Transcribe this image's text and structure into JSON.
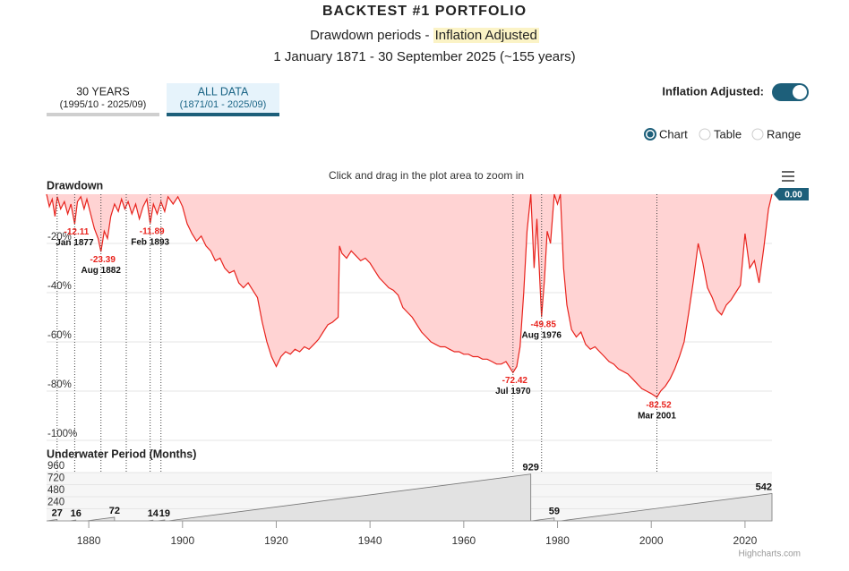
{
  "header": {
    "title": "BACKTEST #1 PORTFOLIO",
    "subtitle": "Drawdown periods - ",
    "subtitle_highlight": "Inflation Adjusted",
    "period": "1 January 1871 - 30 September 2025 (~155 years)"
  },
  "tabs": [
    {
      "label": "30 YEARS",
      "range": "(1995/10 - 2025/09)",
      "active": false
    },
    {
      "label": "ALL DATA",
      "range": "(1871/01 - 2025/09)",
      "active": true
    }
  ],
  "toggle": {
    "label": "Inflation Adjusted:",
    "on": true
  },
  "views": [
    {
      "label": "Chart",
      "selected": true
    },
    {
      "label": "Table",
      "selected": false
    },
    {
      "label": "Range",
      "selected": false
    }
  ],
  "zoom_hint": "Click and drag in the plot area to zoom in",
  "credits": "Highcharts.com",
  "chart_data": [
    {
      "type": "area",
      "title": "Drawdown",
      "color": "#e8231d",
      "fill": "#ffd3d3",
      "xlim": [
        1871,
        2025.75
      ],
      "ylim": [
        -100,
        0
      ],
      "yticks": [
        {
          "value": -100,
          "label": "-100%"
        },
        {
          "value": -80,
          "label": "-80%"
        },
        {
          "value": -60,
          "label": "-60%"
        },
        {
          "value": -40,
          "label": "-40%"
        },
        {
          "value": -20,
          "label": "-20%"
        }
      ],
      "x": [
        1871,
        1871.6,
        1872.2,
        1872.8,
        1873.3,
        1874,
        1874.8,
        1875.5,
        1876.2,
        1877.0,
        1877.6,
        1878.3,
        1879,
        1879.6,
        1880.4,
        1881.2,
        1882,
        1882.6,
        1883.3,
        1884,
        1884.7,
        1885.5,
        1886.3,
        1887,
        1887.7,
        1888.4,
        1889.2,
        1890,
        1890.8,
        1891.6,
        1892.4,
        1893.1,
        1893.8,
        1894.6,
        1895.4,
        1896.2,
        1896.9,
        1898,
        1899,
        1900,
        1901,
        1902,
        1903,
        1904,
        1905,
        1906,
        1907,
        1908,
        1909,
        1910,
        1911,
        1912,
        1913,
        1914,
        1915,
        1916,
        1917,
        1918,
        1919,
        1920,
        1921,
        1922,
        1923,
        1924,
        1925,
        1926,
        1927,
        1928,
        1929,
        1930,
        1931,
        1932,
        1933.2,
        1933.5,
        1934,
        1935,
        1936,
        1937,
        1938,
        1939,
        1940,
        1941,
        1942,
        1943,
        1944,
        1945,
        1946,
        1947,
        1948,
        1949,
        1950,
        1951,
        1952,
        1953,
        1954,
        1955,
        1956,
        1957,
        1958,
        1959,
        1960,
        1961,
        1962,
        1963,
        1964,
        1965,
        1966,
        1967,
        1968,
        1969,
        1970.5,
        1971.3,
        1972,
        1972.8,
        1973.5,
        1974.3,
        1975,
        1975.6,
        1976.6,
        1977.2,
        1977.8,
        1978.5,
        1979.3,
        1980,
        1980.6,
        1981.3,
        1982,
        1983,
        1984,
        1985,
        1986,
        1987,
        1988,
        1989,
        1990,
        1991,
        1992,
        1993,
        1994,
        1995,
        1996,
        1997,
        1998,
        1999,
        2000,
        2001.2,
        2002,
        2003,
        2004,
        2005,
        2006,
        2007,
        2008,
        2009,
        2010,
        2011,
        2012,
        2013,
        2014,
        2015,
        2016,
        2017,
        2018,
        2019,
        2020,
        2021,
        2022,
        2023,
        2024,
        2025,
        2025.75
      ],
      "values": [
        0,
        -5,
        -2,
        -9,
        -1,
        -6,
        -3,
        -8,
        -4,
        -12.11,
        -3,
        -1,
        -6,
        -2,
        -8,
        -14,
        -18,
        -23.39,
        -15,
        -18,
        -9,
        -4,
        -7,
        -2,
        -6,
        -3,
        -8,
        -4,
        -10,
        -5,
        -2,
        -11.89,
        -4,
        -8,
        -3,
        -7,
        -1,
        -4,
        -1,
        -5,
        -12,
        -16,
        -19,
        -17,
        -21,
        -23,
        -27,
        -26,
        -30,
        -32,
        -31,
        -36,
        -38,
        -36,
        -39,
        -42,
        -52,
        -60,
        -66,
        -70,
        -66,
        -64,
        -65,
        -63,
        -64,
        -62,
        -63,
        -61,
        -59,
        -56,
        -53,
        -52,
        -50,
        -21,
        -24,
        -26,
        -23,
        -25,
        -27,
        -26,
        -28,
        -31,
        -34,
        -36,
        -38,
        -39,
        -41,
        -46,
        -48,
        -50,
        -53,
        -56,
        -58,
        -60,
        -61,
        -62,
        -62,
        -63,
        -64,
        -64,
        -65,
        -65,
        -66,
        -66,
        -67,
        -67,
        -68,
        -69,
        -69,
        -68,
        -72.42,
        -70,
        -62,
        -40,
        -15,
        0,
        -30,
        -10,
        -49.85,
        -35,
        -15,
        -20,
        0,
        -4,
        0,
        -30,
        -45,
        -55,
        -58,
        -56,
        -61,
        -63,
        -62,
        -64,
        -66,
        -68,
        -69,
        -71,
        -72,
        -73,
        -75,
        -77,
        -79,
        -80,
        -81,
        -82.52,
        -80,
        -78,
        -75,
        -71,
        -66,
        -60,
        -48,
        -35,
        -20,
        -28,
        -38,
        -42,
        -47,
        -49,
        -45,
        -43,
        -40,
        -37,
        -16,
        -30,
        -27,
        -36,
        -22,
        -6,
        0
      ],
      "last_label": "0.00",
      "annotations": [
        {
          "x": 1877.0,
          "value": -12.11,
          "date": "Jan 1877"
        },
        {
          "x": 1882.6,
          "value": -23.39,
          "date": "Aug 1882"
        },
        {
          "x": 1893.1,
          "value": -11.89,
          "date": "Feb 1893"
        },
        {
          "x": 1970.5,
          "value": -72.42,
          "date": "Jul 1970"
        },
        {
          "x": 1976.6,
          "value": -49.85,
          "date": "Aug 1976"
        },
        {
          "x": 2001.2,
          "value": -82.52,
          "date": "Mar 2001"
        }
      ],
      "markers": [
        1873.25,
        1888.0,
        1895.4
      ]
    },
    {
      "type": "sawtooth",
      "title": "Underwater Period (Months)",
      "color": "#777777",
      "fill": "#e2e2e2",
      "xlim": [
        1871,
        2025.75
      ],
      "xticks": [
        1880,
        1900,
        1920,
        1940,
        1960,
        1980,
        2000,
        2020
      ],
      "ylim": [
        0,
        960
      ],
      "yticks": [
        240,
        480,
        720,
        960
      ],
      "periods": [
        {
          "start": 1871.0,
          "end": 1873.25,
          "months": 27
        },
        {
          "start": 1875.9,
          "end": 1877.25,
          "months": 16
        },
        {
          "start": 1879.5,
          "end": 1885.5,
          "months": 72
        },
        {
          "start": 1892.5,
          "end": 1893.7,
          "months": 14
        },
        {
          "start": 1894.6,
          "end": 1896.2,
          "months": 19
        },
        {
          "start": 1896.9,
          "end": 1974.3,
          "months": 929
        },
        {
          "start": 1974.4,
          "end": 1979.3,
          "months": 59
        },
        {
          "start": 1980.6,
          "end": 2025.75,
          "months": 542
        }
      ]
    }
  ]
}
